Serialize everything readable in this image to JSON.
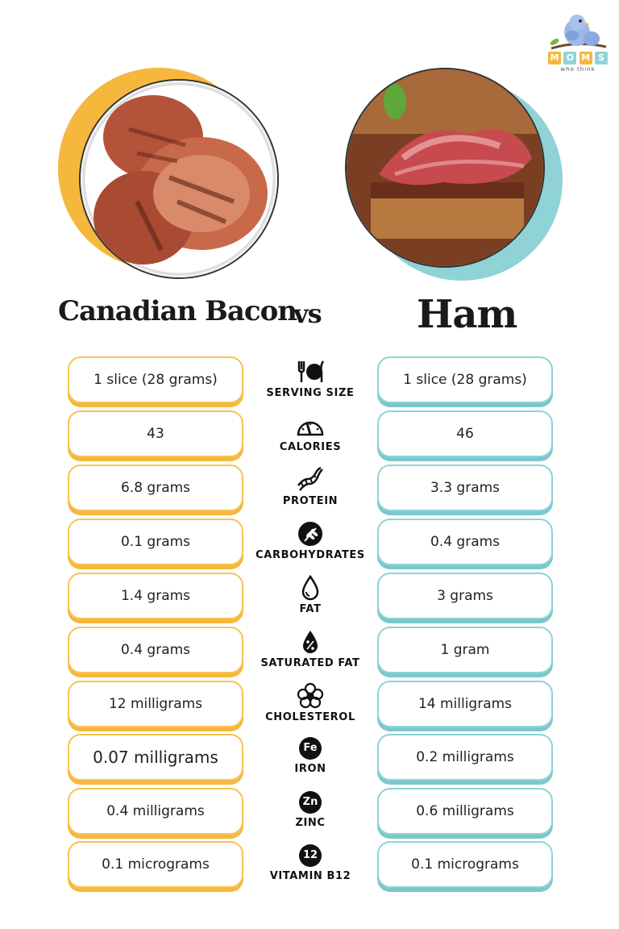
{
  "logo": {
    "letters": [
      "M",
      "O",
      "M",
      "S"
    ],
    "letter_colors": [
      "#f6b73d",
      "#8fd3d6",
      "#f6b73d",
      "#8fd3d6"
    ],
    "tagline": "who think"
  },
  "header": {
    "left_title": "Canadian Bacon",
    "vs": "vs",
    "right_title": "Ham"
  },
  "colors": {
    "left_accent": "#f6b73d",
    "right_accent": "#8fd3d6"
  },
  "rows": [
    {
      "label": "SERVING SIZE",
      "icon": "utensils-plate-icon",
      "left": "1 slice (28 grams)",
      "right": "1 slice (28 grams)"
    },
    {
      "label": "CALORIES",
      "icon": "gauge-icon",
      "left": "43",
      "right": "46"
    },
    {
      "label": "PROTEIN",
      "icon": "dna-icon",
      "left": "6.8 grams",
      "right": "3.3 grams"
    },
    {
      "label": "CARBOHYDRATES",
      "icon": "wheat-icon",
      "left": "0.1 grams",
      "right": "0.4 grams"
    },
    {
      "label": "FAT",
      "icon": "drop-icon",
      "left": "1.4 grams",
      "right": "3 grams"
    },
    {
      "label": "SATURATED FAT",
      "icon": "drop-percent-icon",
      "left": "0.4 grams",
      "right": "1 gram"
    },
    {
      "label": "CHOLESTEROL",
      "icon": "molecule-icon",
      "left": "12 milligrams",
      "right": "14 milligrams"
    },
    {
      "label": "IRON",
      "icon": "Fe",
      "left": "0.07 milligrams",
      "right": "0.2 milligrams"
    },
    {
      "label": "ZINC",
      "icon": "Zn",
      "left": "0.4 milligrams",
      "right": "0.6 milligrams"
    },
    {
      "label": "VITAMIN B12",
      "icon": "12",
      "left": "0.1 micrograms",
      "right": "0.1 micrograms"
    }
  ]
}
